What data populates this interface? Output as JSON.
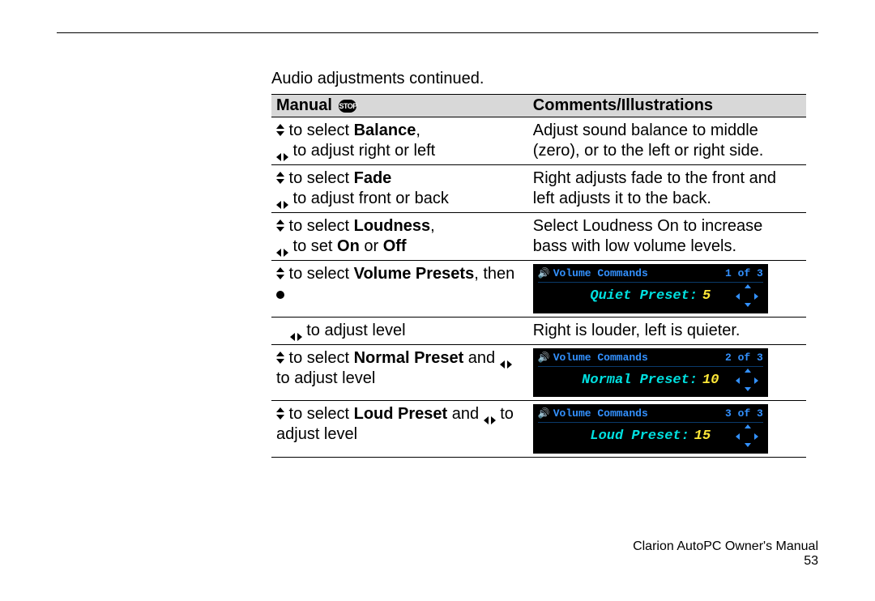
{
  "page": {
    "intro": "Audio adjustments continued.",
    "footer_title": "Clarion AutoPC Owner's Manual",
    "footer_pagenum": "53"
  },
  "table": {
    "header_manual": "Manual",
    "header_stop": "STOP",
    "header_comments": "Comments/Illustrations"
  },
  "rows": {
    "balance": {
      "select_prefix": " to select ",
      "select_bold": "Balance",
      "select_suffix": ",",
      "adjust_text": " to adjust right or left",
      "comment": "Adjust sound balance to middle (zero), or to the left or right side."
    },
    "fade": {
      "select_prefix": " to select ",
      "select_bold": "Fade",
      "adjust_text": " to adjust front or back",
      "comment": "Right adjusts fade to the front and left adjusts it to the back."
    },
    "loudness": {
      "select_prefix": " to select ",
      "select_bold": "Loudness",
      "select_suffix": ",",
      "adjust_prefix": " to set ",
      "adjust_on": "On",
      "adjust_or": " or ",
      "adjust_off": "Off",
      "comment": "Select Loudness On to increase bass with low volume levels."
    },
    "volpresets": {
      "select_prefix": " to select ",
      "select_bold": "Volume Presets",
      "select_suffix": ", then "
    },
    "adjlevel": {
      "text": " to adjust level",
      "comment": "Right is louder, left is quieter."
    },
    "normal": {
      "select_prefix": " to select ",
      "select_bold": "Normal Preset",
      "select_suffix": " and ",
      "tail": " to adjust level"
    },
    "loud": {
      "select_prefix": " to select ",
      "select_bold": "Loud Preset",
      "select_suffix": " and ",
      "tail": " to adjust level"
    }
  },
  "lcd": {
    "title": "Volume Commands",
    "quiet": {
      "count": "1 of 3",
      "label": "Quiet Preset:",
      "value": "5",
      "label_color": "#00e0e0"
    },
    "normal": {
      "count": "2 of 3",
      "label": "Normal Preset:",
      "value": "10",
      "label_color": "#00e0e0"
    },
    "loud": {
      "count": "3 of 3",
      "label": "Loud Preset:",
      "value": "15",
      "label_color": "#00e0e0"
    }
  }
}
